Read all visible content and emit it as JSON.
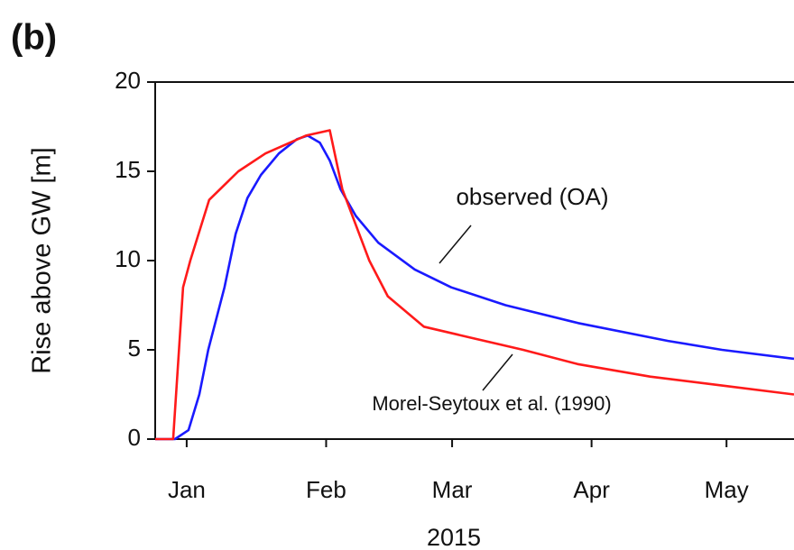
{
  "chart_data": {
    "type": "line",
    "panel_label": "(b)",
    "ylabel": "Rise above GW [m]",
    "xlabel": "2015",
    "xlim": [
      -6,
      136
    ],
    "ylim": [
      0,
      20
    ],
    "yticks": [
      0,
      5,
      10,
      15,
      20
    ],
    "xticks": [
      {
        "value": 1,
        "label": "Jan"
      },
      {
        "value": 32,
        "label": "Feb"
      },
      {
        "value": 60,
        "label": "Mar"
      },
      {
        "value": 91,
        "label": "Apr"
      },
      {
        "value": 121,
        "label": "May"
      }
    ],
    "series": [
      {
        "name": "observed (OA)",
        "color": "#1a1aff",
        "x": [
          -6,
          -1.6,
          1.4,
          3.8,
          5.8,
          9.4,
          11.9,
          14.5,
          17.5,
          21.5,
          25.5,
          27.9,
          30.6,
          32.8,
          35.2,
          38.6,
          43.6,
          51.7,
          59.8,
          71.9,
          88,
          108,
          120,
          136
        ],
        "values": [
          0,
          0,
          0.5,
          2.5,
          5,
          8.5,
          11.5,
          13.5,
          14.8,
          16,
          16.8,
          17,
          16.6,
          15.6,
          14,
          12.5,
          11,
          9.5,
          8.5,
          7.5,
          6.5,
          5.5,
          5,
          4.5
        ]
      },
      {
        "name": "Morel-Seytoux et al. (1990)",
        "color": "#ff1a1a",
        "x": [
          -6,
          -2,
          0.2,
          1.8,
          6,
          12.5,
          18.5,
          27.5,
          32.8,
          35.6,
          41.6,
          45.7,
          53.7,
          63.8,
          75.8,
          87.9,
          104,
          120,
          136
        ],
        "values": [
          0,
          0,
          8.5,
          10,
          13.4,
          15,
          16,
          17,
          17.3,
          14,
          10,
          8,
          6.3,
          5.7,
          5,
          4.2,
          3.5,
          3,
          2.5
        ]
      }
    ]
  }
}
